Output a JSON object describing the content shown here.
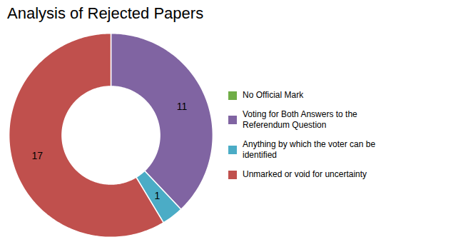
{
  "chart_data": {
    "type": "pie",
    "title": "Analysis of Rejected Papers",
    "categories": [
      "No Official Mark",
      "Voting for Both Answers to the\nReferendum Question",
      "Anything by which the voter can be\nidentified",
      "Unmarked or void for uncertainty"
    ],
    "values": [
      0,
      11,
      1,
      17
    ],
    "colors": [
      "#70ad47",
      "#8064a2",
      "#4bacc6",
      "#c0504d"
    ],
    "data_labels": true,
    "legend": "right"
  }
}
